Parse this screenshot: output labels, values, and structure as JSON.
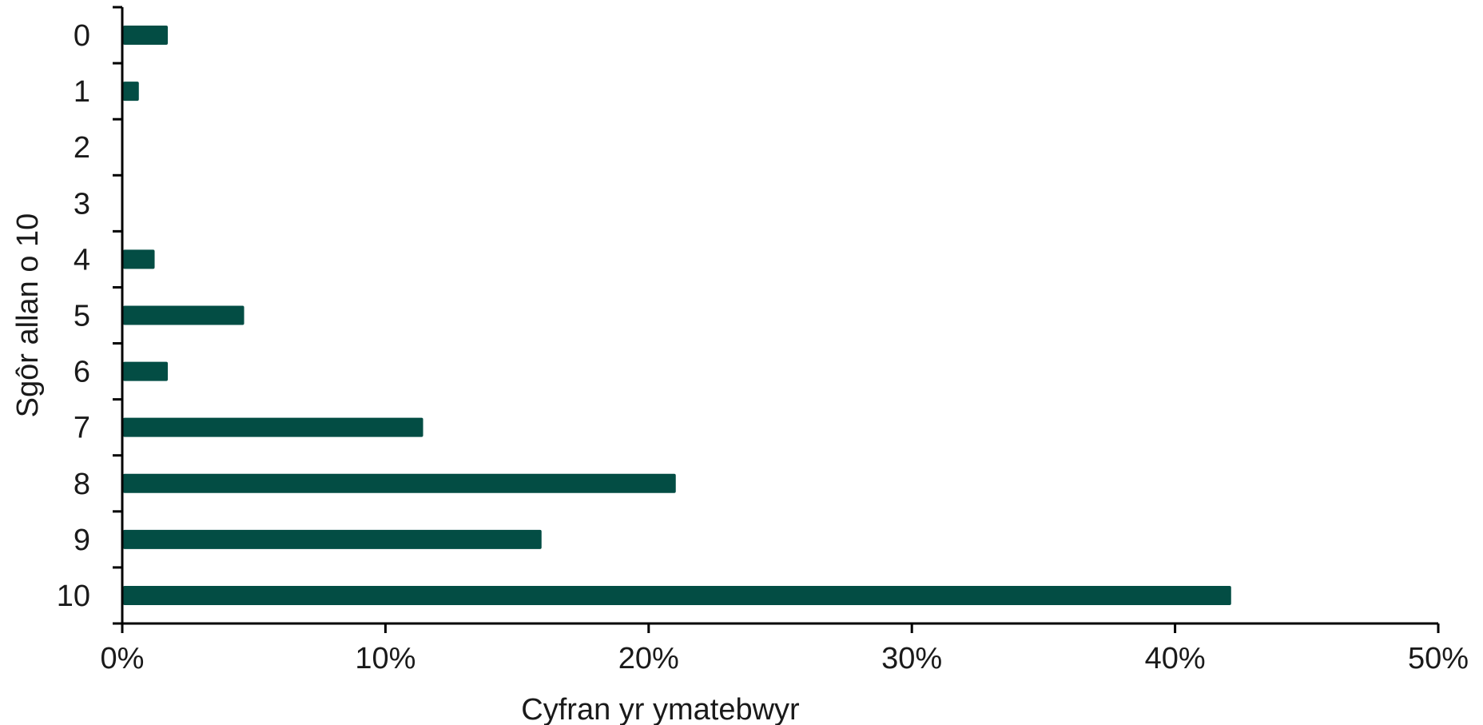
{
  "chart_data": {
    "type": "bar",
    "orientation": "horizontal",
    "categories": [
      "0",
      "1",
      "2",
      "3",
      "4",
      "5",
      "6",
      "7",
      "8",
      "9",
      "10"
    ],
    "values": [
      1.7,
      0.6,
      0,
      0,
      1.2,
      4.6,
      1.7,
      11.4,
      21.0,
      15.9,
      42.1
    ],
    "xlabel": "Cyfran yr ymatebwyr",
    "ylabel": "Sgôr allan o 10",
    "xlim": [
      0,
      50
    ],
    "xticks": [
      0,
      10,
      20,
      30,
      40,
      50
    ],
    "xtick_labels": [
      "0%",
      "10%",
      "20%",
      "30%",
      "40%",
      "50%"
    ],
    "bar_color": "#034d44",
    "grid": false,
    "legend": "none"
  }
}
